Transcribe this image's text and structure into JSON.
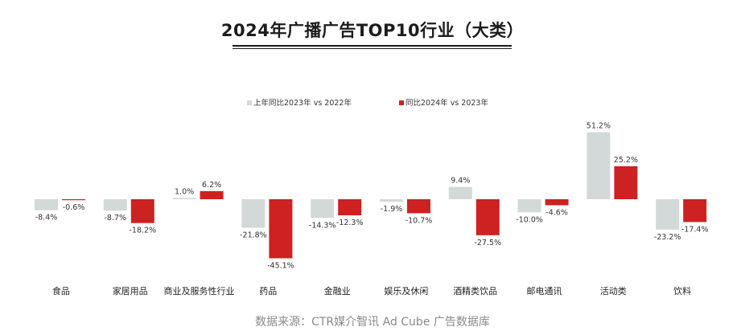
{
  "page": {
    "title": "2024年广播广告TOP10行业（大类）",
    "source": "数据来源：CTR媒介智讯 Ad Cube 广告数据库"
  },
  "colors": {
    "series_2023": "#d3d9d8",
    "series_2024": "#cc2222"
  },
  "chart_data": {
    "type": "bar",
    "title": "2024年广播广告TOP10行业（大类）",
    "xlabel": "",
    "ylabel": "",
    "categories": [
      "食品",
      "家居用品",
      "商业及服务性行业",
      "药品",
      "金融业",
      "娱乐及休闲",
      "酒精类饮品",
      "邮电通讯",
      "活动类",
      "饮料"
    ],
    "series": [
      {
        "name": "上年同比2023年 vs 2022年",
        "values": [
          -8.4,
          -8.7,
          1.0,
          -21.8,
          -14.3,
          -1.9,
          9.4,
          -10.0,
          51.2,
          -23.2
        ],
        "labels": [
          "-8.4%",
          "-8.7%",
          "1.0%",
          "-21.8%",
          "-14.3%",
          "-1.9%",
          "9.4%",
          "-10.0%",
          "51.2%",
          "-23.2%"
        ]
      },
      {
        "name": "同比2024年 vs 2023年",
        "values": [
          -0.6,
          -18.2,
          6.2,
          -45.1,
          -12.3,
          -10.7,
          -27.5,
          -4.6,
          25.2,
          -17.4
        ],
        "labels": [
          "-0.6%",
          "-18.2%",
          "6.2%",
          "-45.1%",
          "-12.3%",
          "-10.7%",
          "-27.5%",
          "-4.6%",
          "25.2%",
          "-17.4%"
        ]
      }
    ],
    "ylim": [
      -50,
      55
    ],
    "grid": false,
    "legend_position": "top-center",
    "value_format": "percent"
  }
}
